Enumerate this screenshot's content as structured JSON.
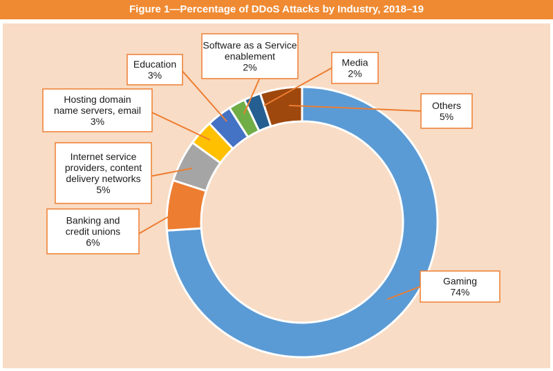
{
  "chart_data": {
    "type": "pie",
    "variant": "donut",
    "title": "Figure 1—Percentage of DDoS Attacks by Industry, 2018–19",
    "unit": "%",
    "slices": [
      {
        "name": "Gaming",
        "value": 74,
        "label_lines": [
          "Gaming",
          "74%"
        ],
        "color": "#5b9bd5"
      },
      {
        "name": "Banking and credit unions",
        "value": 6,
        "label_lines": [
          "Banking and",
          "credit unions",
          "6%"
        ],
        "color": "#ed7d31"
      },
      {
        "name": "Internet service providers, content delivery networks",
        "value": 5,
        "label_lines": [
          "Internet service",
          "providers, content",
          "delivery networks",
          "5%"
        ],
        "color": "#a5a5a5"
      },
      {
        "name": "Hosting domain name servers, email",
        "value": 3,
        "label_lines": [
          "Hosting domain",
          "name servers, email",
          "3%"
        ],
        "color": "#ffc000"
      },
      {
        "name": "Education",
        "value": 3,
        "label_lines": [
          "Education",
          "3%"
        ],
        "color": "#4472c4"
      },
      {
        "name": "Software as a Service enablement",
        "value": 2,
        "label_lines": [
          "Software as a Service",
          "enablement",
          "2%"
        ],
        "color": "#70ad47"
      },
      {
        "name": "Media",
        "value": 2,
        "label_lines": [
          "Media",
          "2%"
        ],
        "color": "#255e91"
      },
      {
        "name": "Others",
        "value": 5,
        "label_lines": [
          "Others",
          "5%"
        ],
        "color": "#9e480e"
      }
    ]
  }
}
